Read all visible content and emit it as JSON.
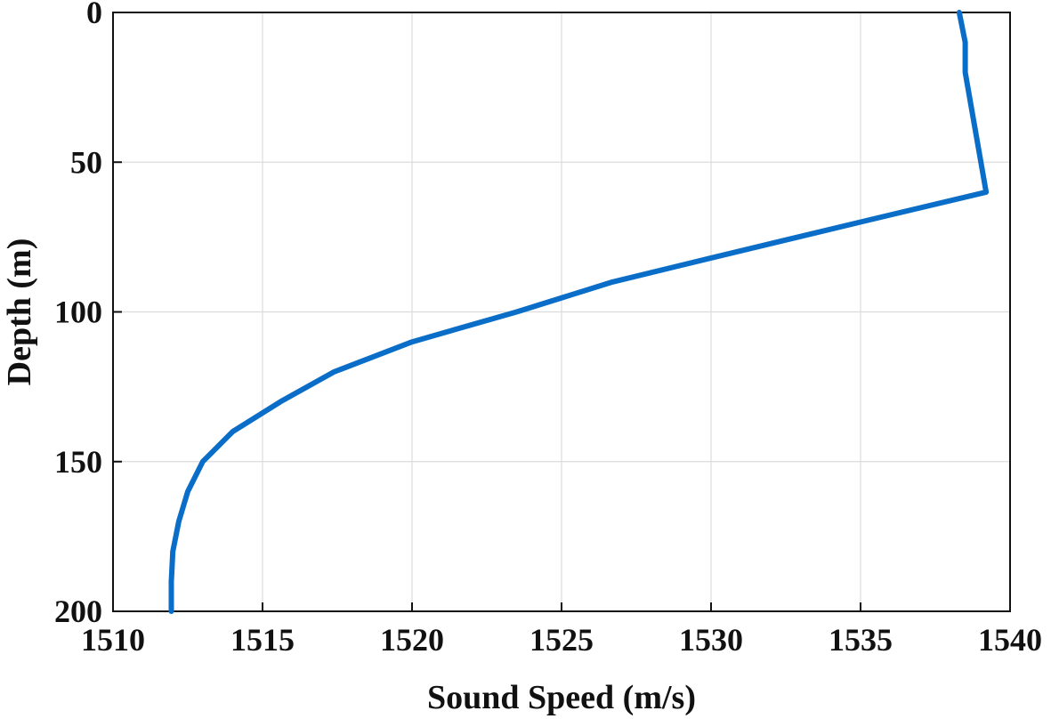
{
  "chart_data": {
    "type": "line",
    "xlabel": "Sound Speed (m/s)",
    "ylabel": "Depth (m)",
    "xlim": [
      1510,
      1540
    ],
    "ylim": [
      0,
      200
    ],
    "y_reversed": true,
    "x_ticks": [
      1510,
      1515,
      1520,
      1525,
      1530,
      1535,
      1540
    ],
    "y_ticks": [
      0,
      50,
      100,
      150,
      200
    ],
    "grid": true,
    "series": [
      {
        "color": "#0a6ec8",
        "points": [
          {
            "x": 1538.3,
            "y": 0
          },
          {
            "x": 1538.5,
            "y": 10
          },
          {
            "x": 1538.5,
            "y": 20
          },
          {
            "x": 1539.2,
            "y": 60
          },
          {
            "x": 1535.0,
            "y": 70
          },
          {
            "x": 1530.0,
            "y": 82
          },
          {
            "x": 1526.7,
            "y": 90
          },
          {
            "x": 1523.5,
            "y": 100
          },
          {
            "x": 1520.0,
            "y": 110
          },
          {
            "x": 1517.4,
            "y": 120
          },
          {
            "x": 1515.6,
            "y": 130
          },
          {
            "x": 1514.0,
            "y": 140
          },
          {
            "x": 1513.0,
            "y": 150
          },
          {
            "x": 1512.5,
            "y": 160
          },
          {
            "x": 1512.2,
            "y": 170
          },
          {
            "x": 1512.0,
            "y": 180
          },
          {
            "x": 1511.95,
            "y": 190
          },
          {
            "x": 1511.95,
            "y": 200
          }
        ]
      }
    ]
  }
}
